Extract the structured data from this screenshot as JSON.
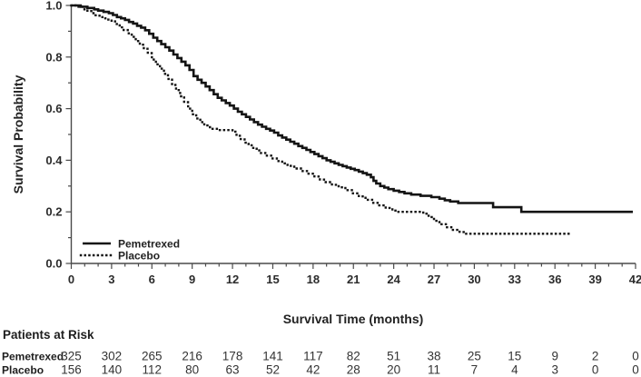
{
  "figure": {
    "background": "#ffffff",
    "ink": "#141414"
  },
  "chart_data": {
    "type": "line",
    "subtype": "kaplan-meier-step",
    "title": "",
    "xlabel": "Survival Time (months)",
    "ylabel": "Survival Probability",
    "xlim": [
      0,
      42
    ],
    "ylim": [
      0.0,
      1.0
    ],
    "grid": false,
    "legend_position": "lower-left",
    "x_major_ticks": [
      0,
      3,
      6,
      9,
      12,
      15,
      18,
      21,
      24,
      27,
      30,
      33,
      36,
      39,
      42
    ],
    "x_minor_step": 1,
    "y_major_ticks": [
      0.0,
      0.2,
      0.4,
      0.6,
      0.8,
      1.0
    ],
    "y_tick_labels": [
      "0.0",
      "0.2",
      "0.4",
      "0.6",
      "0.8",
      "1.0"
    ],
    "y_minor_ticks": [
      0.1,
      0.3,
      0.5,
      0.7,
      0.9
    ],
    "series": [
      {
        "name": "Pemetrexed",
        "style": "solid",
        "points": [
          [
            0,
            1.0
          ],
          [
            0.7,
            0.995
          ],
          [
            1.2,
            0.99
          ],
          [
            1.7,
            0.985
          ],
          [
            2.0,
            0.98
          ],
          [
            2.4,
            0.975
          ],
          [
            2.8,
            0.97
          ],
          [
            3.1,
            0.963
          ],
          [
            3.4,
            0.955
          ],
          [
            3.7,
            0.95
          ],
          [
            4.0,
            0.944
          ],
          [
            4.3,
            0.936
          ],
          [
            4.6,
            0.93
          ],
          [
            4.9,
            0.921
          ],
          [
            5.2,
            0.914
          ],
          [
            5.5,
            0.904
          ],
          [
            5.8,
            0.89
          ],
          [
            6.1,
            0.875
          ],
          [
            6.4,
            0.862
          ],
          [
            6.7,
            0.85
          ],
          [
            7.0,
            0.838
          ],
          [
            7.3,
            0.825
          ],
          [
            7.6,
            0.81
          ],
          [
            7.9,
            0.796
          ],
          [
            8.2,
            0.782
          ],
          [
            8.5,
            0.768
          ],
          [
            8.8,
            0.75
          ],
          [
            9.1,
            0.726
          ],
          [
            9.4,
            0.712
          ],
          [
            9.7,
            0.7
          ],
          [
            10.0,
            0.686
          ],
          [
            10.3,
            0.672
          ],
          [
            10.6,
            0.656
          ],
          [
            10.9,
            0.642
          ],
          [
            11.2,
            0.632
          ],
          [
            11.5,
            0.622
          ],
          [
            11.8,
            0.612
          ],
          [
            12.1,
            0.6
          ],
          [
            12.4,
            0.588
          ],
          [
            12.7,
            0.578
          ],
          [
            13.0,
            0.568
          ],
          [
            13.3,
            0.558
          ],
          [
            13.6,
            0.548
          ],
          [
            13.9,
            0.538
          ],
          [
            14.2,
            0.53
          ],
          [
            14.5,
            0.522
          ],
          [
            14.8,
            0.515
          ],
          [
            15.1,
            0.507
          ],
          [
            15.4,
            0.496
          ],
          [
            15.7,
            0.488
          ],
          [
            16.0,
            0.48
          ],
          [
            16.3,
            0.472
          ],
          [
            16.6,
            0.464
          ],
          [
            16.9,
            0.455
          ],
          [
            17.2,
            0.448
          ],
          [
            17.5,
            0.44
          ],
          [
            17.8,
            0.432
          ],
          [
            18.1,
            0.424
          ],
          [
            18.4,
            0.416
          ],
          [
            18.7,
            0.408
          ],
          [
            19.0,
            0.4
          ],
          [
            19.3,
            0.394
          ],
          [
            19.6,
            0.388
          ],
          [
            19.9,
            0.382
          ],
          [
            20.2,
            0.377
          ],
          [
            20.5,
            0.372
          ],
          [
            20.8,
            0.367
          ],
          [
            21.1,
            0.362
          ],
          [
            21.4,
            0.356
          ],
          [
            21.7,
            0.35
          ],
          [
            22.0,
            0.344
          ],
          [
            22.3,
            0.334
          ],
          [
            22.5,
            0.32
          ],
          [
            22.7,
            0.31
          ],
          [
            23.0,
            0.3
          ],
          [
            23.3,
            0.294
          ],
          [
            23.6,
            0.288
          ],
          [
            24.0,
            0.282
          ],
          [
            24.4,
            0.277
          ],
          [
            24.8,
            0.272
          ],
          [
            25.3,
            0.267
          ],
          [
            26.0,
            0.262
          ],
          [
            26.8,
            0.257
          ],
          [
            27.4,
            0.251
          ],
          [
            27.8,
            0.245
          ],
          [
            28.2,
            0.24
          ],
          [
            28.8,
            0.234
          ],
          [
            31.4,
            0.218
          ],
          [
            33.5,
            0.2
          ],
          [
            41.8,
            0.2
          ]
        ]
      },
      {
        "name": "Placebo",
        "style": "dotted",
        "points": [
          [
            0,
            1.0
          ],
          [
            0.5,
            0.995
          ],
          [
            0.9,
            0.985
          ],
          [
            1.2,
            0.978
          ],
          [
            1.5,
            0.97
          ],
          [
            1.8,
            0.962
          ],
          [
            2.1,
            0.955
          ],
          [
            2.4,
            0.95
          ],
          [
            2.7,
            0.945
          ],
          [
            3.0,
            0.938
          ],
          [
            3.3,
            0.928
          ],
          [
            3.6,
            0.915
          ],
          [
            3.9,
            0.905
          ],
          [
            4.2,
            0.892
          ],
          [
            4.5,
            0.878
          ],
          [
            4.8,
            0.862
          ],
          [
            5.1,
            0.848
          ],
          [
            5.4,
            0.832
          ],
          [
            5.7,
            0.815
          ],
          [
            6.0,
            0.79
          ],
          [
            6.3,
            0.772
          ],
          [
            6.6,
            0.755
          ],
          [
            6.9,
            0.735
          ],
          [
            7.2,
            0.715
          ],
          [
            7.5,
            0.692
          ],
          [
            7.8,
            0.672
          ],
          [
            8.1,
            0.648
          ],
          [
            8.4,
            0.625
          ],
          [
            8.7,
            0.6
          ],
          [
            9.0,
            0.578
          ],
          [
            9.3,
            0.562
          ],
          [
            9.6,
            0.548
          ],
          [
            9.9,
            0.535
          ],
          [
            10.2,
            0.528
          ],
          [
            10.5,
            0.522
          ],
          [
            11.0,
            0.517
          ],
          [
            12.0,
            0.511
          ],
          [
            12.3,
            0.495
          ],
          [
            12.6,
            0.482
          ],
          [
            12.9,
            0.468
          ],
          [
            13.2,
            0.458
          ],
          [
            13.5,
            0.448
          ],
          [
            13.8,
            0.438
          ],
          [
            14.1,
            0.428
          ],
          [
            14.5,
            0.418
          ],
          [
            14.9,
            0.407
          ],
          [
            15.3,
            0.397
          ],
          [
            15.7,
            0.388
          ],
          [
            16.1,
            0.378
          ],
          [
            16.6,
            0.368
          ],
          [
            17.1,
            0.358
          ],
          [
            17.6,
            0.348
          ],
          [
            18.1,
            0.337
          ],
          [
            18.5,
            0.325
          ],
          [
            18.9,
            0.315
          ],
          [
            19.4,
            0.305
          ],
          [
            19.9,
            0.295
          ],
          [
            20.4,
            0.284
          ],
          [
            20.9,
            0.272
          ],
          [
            21.4,
            0.26
          ],
          [
            21.9,
            0.247
          ],
          [
            22.4,
            0.235
          ],
          [
            22.9,
            0.225
          ],
          [
            23.4,
            0.215
          ],
          [
            23.9,
            0.205
          ],
          [
            24.3,
            0.2
          ],
          [
            26.2,
            0.193
          ],
          [
            26.6,
            0.18
          ],
          [
            27.0,
            0.165
          ],
          [
            27.4,
            0.152
          ],
          [
            27.9,
            0.14
          ],
          [
            28.4,
            0.13
          ],
          [
            28.9,
            0.122
          ],
          [
            29.3,
            0.115
          ],
          [
            37.3,
            0.115
          ]
        ]
      }
    ]
  },
  "risk_table": {
    "title": "Patients at Risk",
    "time_points": [
      0,
      3,
      6,
      9,
      12,
      15,
      18,
      21,
      24,
      27,
      30,
      33,
      36,
      39,
      42
    ],
    "rows": [
      {
        "label": "Pemetrexed",
        "counts": [
          325,
          302,
          265,
          216,
          178,
          141,
          117,
          82,
          51,
          38,
          25,
          15,
          9,
          2,
          0
        ]
      },
      {
        "label": "Placebo",
        "counts": [
          156,
          140,
          112,
          80,
          63,
          52,
          42,
          28,
          20,
          11,
          7,
          4,
          3,
          0,
          0
        ]
      }
    ]
  }
}
